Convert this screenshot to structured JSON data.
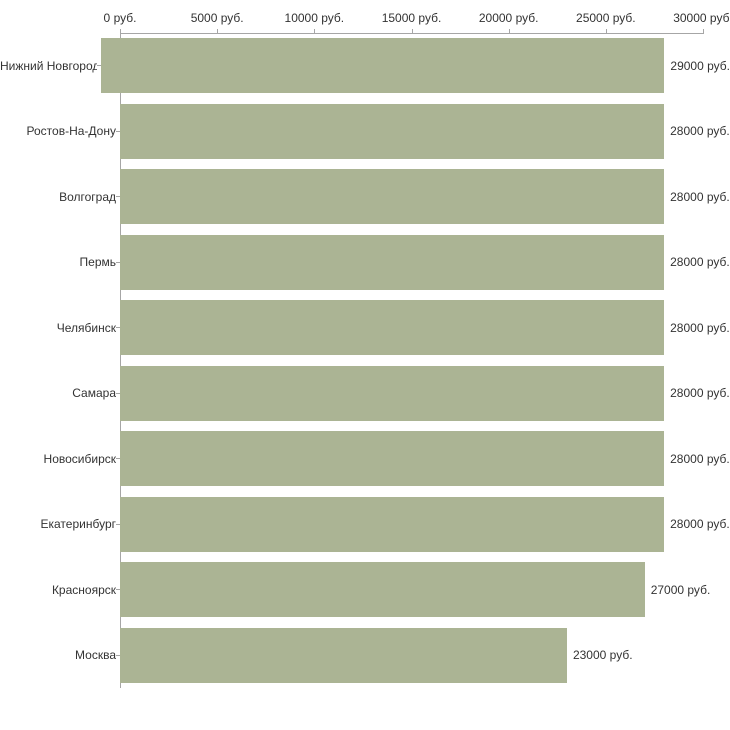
{
  "chart_data": {
    "type": "bar",
    "orientation": "horizontal",
    "title": "",
    "xlabel": "",
    "ylabel": "",
    "xlim": [
      0,
      30000
    ],
    "grid": "off",
    "legend": "none",
    "bar_color": "#abb494",
    "axis_color": "#a6a6a6",
    "categories": [
      "Нижний Новгород",
      "Ростов-На-Дону",
      "Волгоград",
      "Пермь",
      "Челябинск",
      "Самара",
      "Новосибирск",
      "Екатеринбург",
      "Красноярск",
      "Москва"
    ],
    "values": [
      29000,
      28000,
      28000,
      28000,
      28000,
      28000,
      28000,
      28000,
      27000,
      23000
    ],
    "value_labels": [
      "29000 руб.",
      "28000 руб.",
      "28000 руб.",
      "28000 руб.",
      "28000 руб.",
      "28000 руб.",
      "28000 руб.",
      "28000 руб.",
      "27000 руб.",
      "23000 руб."
    ],
    "tick_values": [
      0,
      5000,
      10000,
      15000,
      20000,
      25000,
      30000
    ],
    "axis_ticks": [
      "0 руб.",
      "5000 руб.",
      "10000 руб.",
      "15000 руб.",
      "20000 руб.",
      "25000 руб.",
      "30000 руб."
    ]
  }
}
